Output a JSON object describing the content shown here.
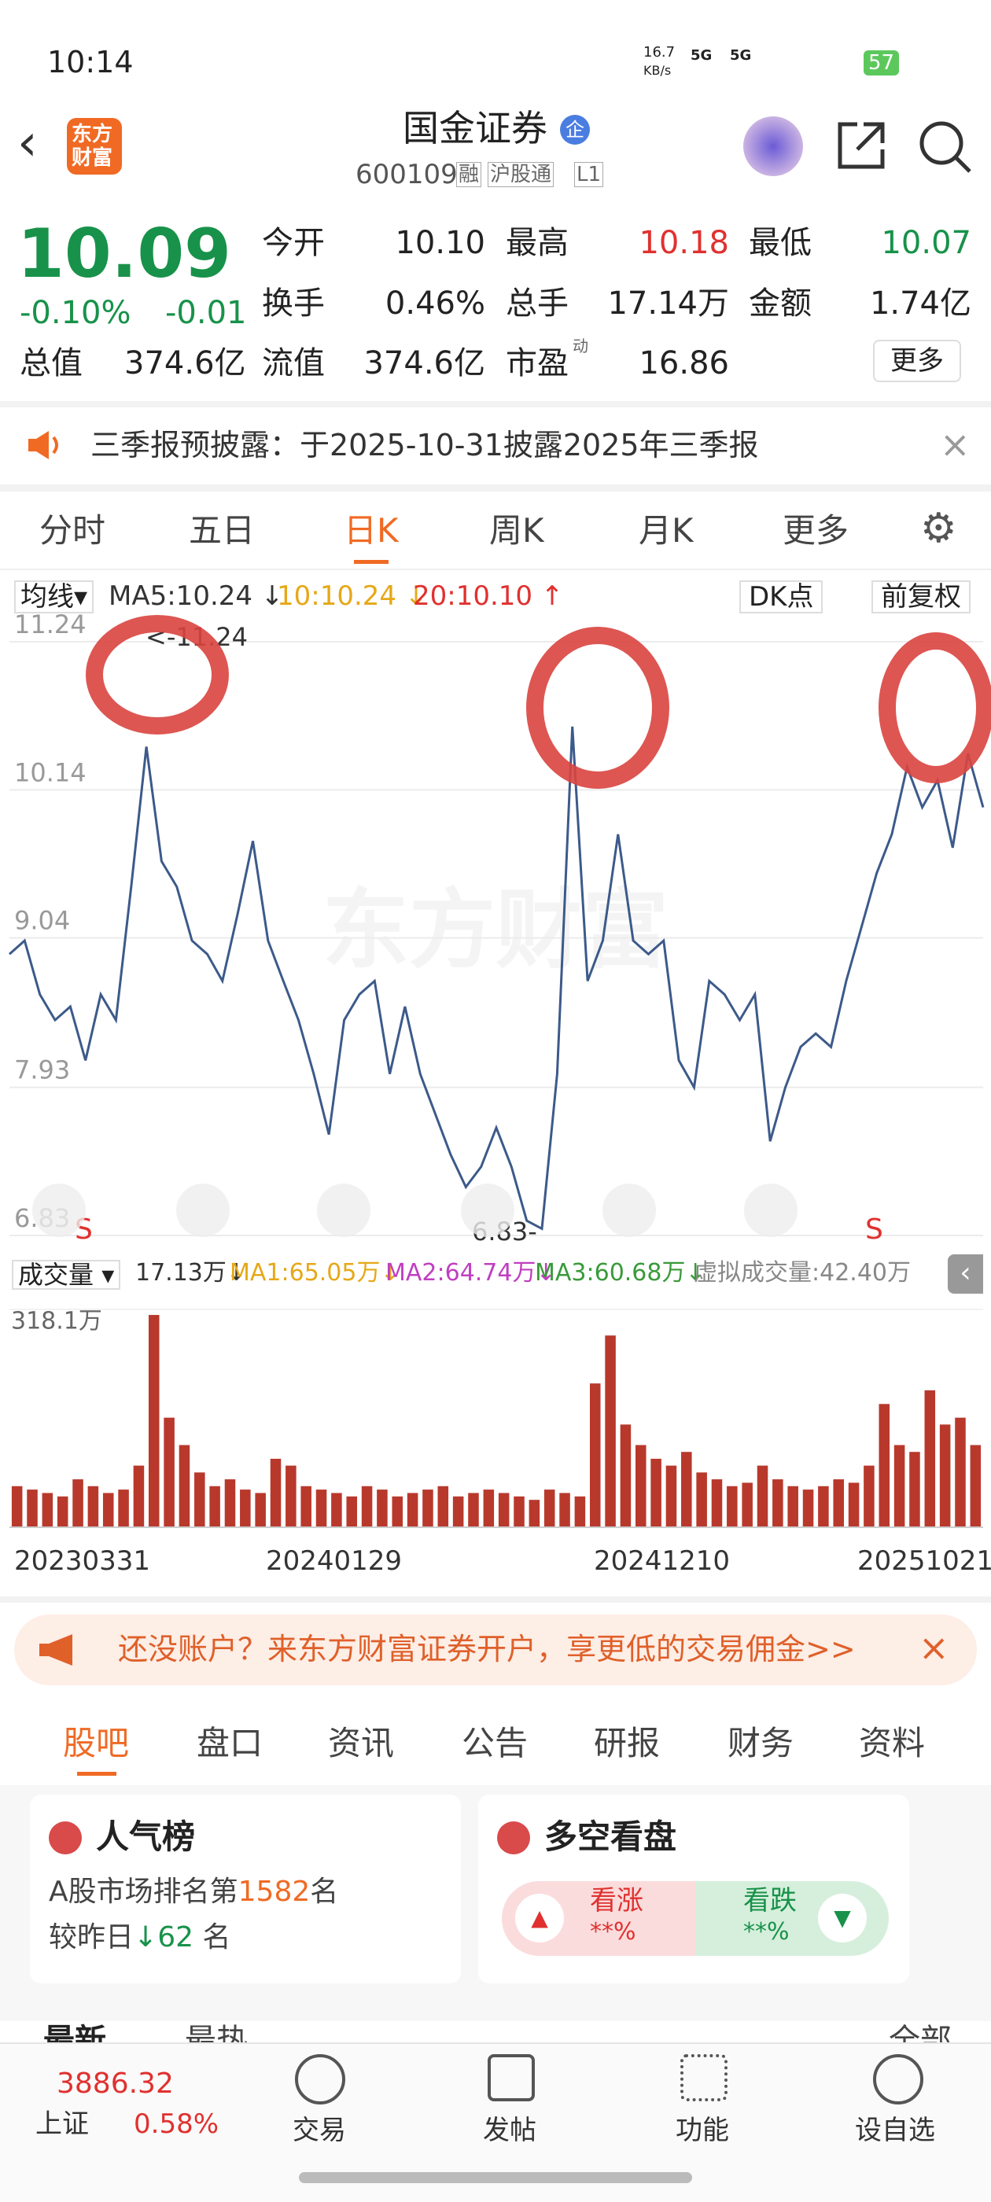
{
  "status": {
    "time": "10:14",
    "speed": "16.7",
    "speed_unit": "KB/s",
    "net1": "5G",
    "net2": "5G",
    "battery": "57"
  },
  "header": {
    "logo_lines": [
      "东方",
      "财富"
    ],
    "title": "国金证券",
    "badge": "企",
    "code": "600109",
    "tags": [
      "融",
      "沪股通",
      "L1"
    ]
  },
  "quote": {
    "price": "10.09",
    "change_pct": "-0.10%",
    "change": "-0.01",
    "open": {
      "label": "今开",
      "value": "10.10"
    },
    "high": {
      "label": "最高",
      "value": "10.18"
    },
    "low": {
      "label": "最低",
      "value": "10.07"
    },
    "turnover": {
      "label": "换手",
      "value": "0.46%"
    },
    "volume": {
      "label": "总手",
      "value": "17.14万"
    },
    "amount": {
      "label": "金额",
      "value": "1.74亿"
    },
    "mcap": {
      "label": "总值",
      "value": "374.6亿"
    },
    "float": {
      "label": "流值",
      "value": "374.6亿"
    },
    "pe": {
      "label": "市盈",
      "sup": "动",
      "value": "16.86"
    },
    "more": "更多"
  },
  "notice": "三季报预披露：于2025-10-31披露2025年三季报",
  "tabs": {
    "items": [
      "分时",
      "五日",
      "日K",
      "周K",
      "月K",
      "更多"
    ],
    "active": 2
  },
  "ma_bar": {
    "selector": "均线",
    "ma5": "MA5:10.24 ↓",
    "ma10": "10:10.24 ↓",
    "ma20": "20:10.10 ↑",
    "dk": "DK点",
    "adjust": "前复权"
  },
  "price_chart": {
    "ylim": [
      6.83,
      11.24
    ],
    "yticks": [
      11.24,
      10.14,
      9.04,
      7.93,
      6.83
    ],
    "max_label": "<-11.24",
    "min_label": "6.83-",
    "watermark": "东方财富",
    "markers": [
      "S",
      "S"
    ],
    "color": "#3c5a8a",
    "values": [
      8.92,
      9.02,
      8.62,
      8.43,
      8.53,
      8.13,
      8.62,
      8.43,
      9.42,
      10.46,
      9.61,
      9.42,
      9.02,
      8.92,
      8.72,
      9.22,
      9.76,
      9.02,
      8.72,
      8.43,
      8.03,
      7.58,
      8.43,
      8.62,
      8.72,
      8.03,
      8.53,
      8.03,
      7.73,
      7.43,
      7.19,
      7.34,
      7.63,
      7.34,
      6.94,
      6.88,
      8.03,
      10.61,
      8.72,
      9.02,
      9.81,
      9.02,
      8.92,
      9.02,
      8.13,
      7.93,
      8.72,
      8.62,
      8.43,
      8.62,
      7.53,
      7.93,
      8.23,
      8.33,
      8.23,
      8.72,
      9.12,
      9.52,
      9.81,
      10.31,
      10.01,
      10.21,
      9.71,
      10.41,
      10.01
    ]
  },
  "volume_bar": {
    "selector": "成交量",
    "vol": "17.13万↓",
    "ma1": "MA1:65.05万↓",
    "ma2": "MA2:64.74万↓",
    "ma3": "MA3:60.68万↓",
    "virtual": "虚拟成交量:42.40万"
  },
  "volume_chart": {
    "ylim": [
      0,
      318.1
    ],
    "yticks": [
      {
        "value": 318.1,
        "label": "318.1万"
      }
    ],
    "color": "#b8392c",
    "dates": [
      "20230331",
      "20240129",
      "20241210",
      "20251021"
    ],
    "values": [
      60,
      55,
      50,
      45,
      70,
      60,
      50,
      55,
      90,
      310,
      160,
      120,
      80,
      60,
      70,
      55,
      50,
      100,
      90,
      60,
      55,
      50,
      45,
      60,
      55,
      45,
      50,
      55,
      60,
      45,
      50,
      55,
      50,
      45,
      40,
      55,
      50,
      45,
      210,
      280,
      150,
      120,
      100,
      90,
      110,
      80,
      70,
      60,
      65,
      90,
      70,
      60,
      55,
      60,
      70,
      65,
      90,
      180,
      120,
      110,
      200,
      150,
      160,
      120
    ]
  },
  "ad": "还没账户？来东方财富证券开户，享更低的交易佣金>>",
  "tabs2": {
    "items": [
      "股吧",
      "盘口",
      "资讯",
      "公告",
      "研报",
      "财务",
      "资料"
    ],
    "active": 0
  },
  "popularity": {
    "title": "人气榜",
    "rank_prefix": "A股市场排名第",
    "rank": "1582",
    "rank_suffix": "名",
    "change_prefix": "较昨日",
    "change": "62",
    "change_suffix": "名"
  },
  "sentiment": {
    "title": "多空看盘",
    "up": "看涨",
    "up_value": "**%",
    "down": "看跌",
    "down_value": "**%"
  },
  "feed": {
    "latest": "最新",
    "hot": "最热",
    "all": "全部"
  },
  "bottom": {
    "index_value": "3886.32",
    "index_name": "上证",
    "index_change": "0.58%",
    "items": [
      "交易",
      "发帖",
      "功能",
      "设自选"
    ]
  }
}
